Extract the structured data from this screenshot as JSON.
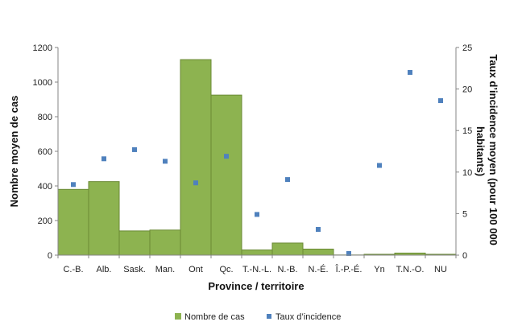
{
  "chart_data": {
    "type": "bar",
    "categories": [
      "C.-B.",
      "Alb.",
      "Sask.",
      "Man.",
      "Ont",
      "Qc.",
      "T.-N.-L.",
      "N.-B.",
      "N.-É.",
      "Î.-P.-É.",
      "Yn",
      "T.N.-O.",
      "NU"
    ],
    "series": [
      {
        "name": "Nombre de cas",
        "type": "bar",
        "axis": "left",
        "color": "#8db350",
        "values": [
          380,
          425,
          140,
          145,
          1130,
          925,
          30,
          70,
          35,
          1,
          5,
          12,
          5
        ]
      },
      {
        "name": "Taux d’incidence",
        "type": "scatter",
        "axis": "right",
        "color": "#4f81bd",
        "values": [
          8.5,
          11.6,
          12.7,
          11.3,
          8.7,
          11.9,
          4.9,
          9.1,
          3.1,
          0.2,
          10.8,
          22.0,
          18.6
        ]
      }
    ],
    "xlabel": "Province / territoire",
    "ylabel": "Nombre moyen de cas",
    "y2label_line1": "Taux d’incidence moyen (pour 100 000",
    "y2label_line2": "habitants)",
    "ylim": [
      0,
      1200
    ],
    "y2lim": [
      0,
      25
    ],
    "yticks": [
      "0",
      "200",
      "400",
      "600",
      "800",
      "1000",
      "1200"
    ],
    "y2ticks": [
      "0",
      "5",
      "10",
      "15",
      "20",
      "25"
    ],
    "grid": false,
    "legend_position": "bottom"
  }
}
